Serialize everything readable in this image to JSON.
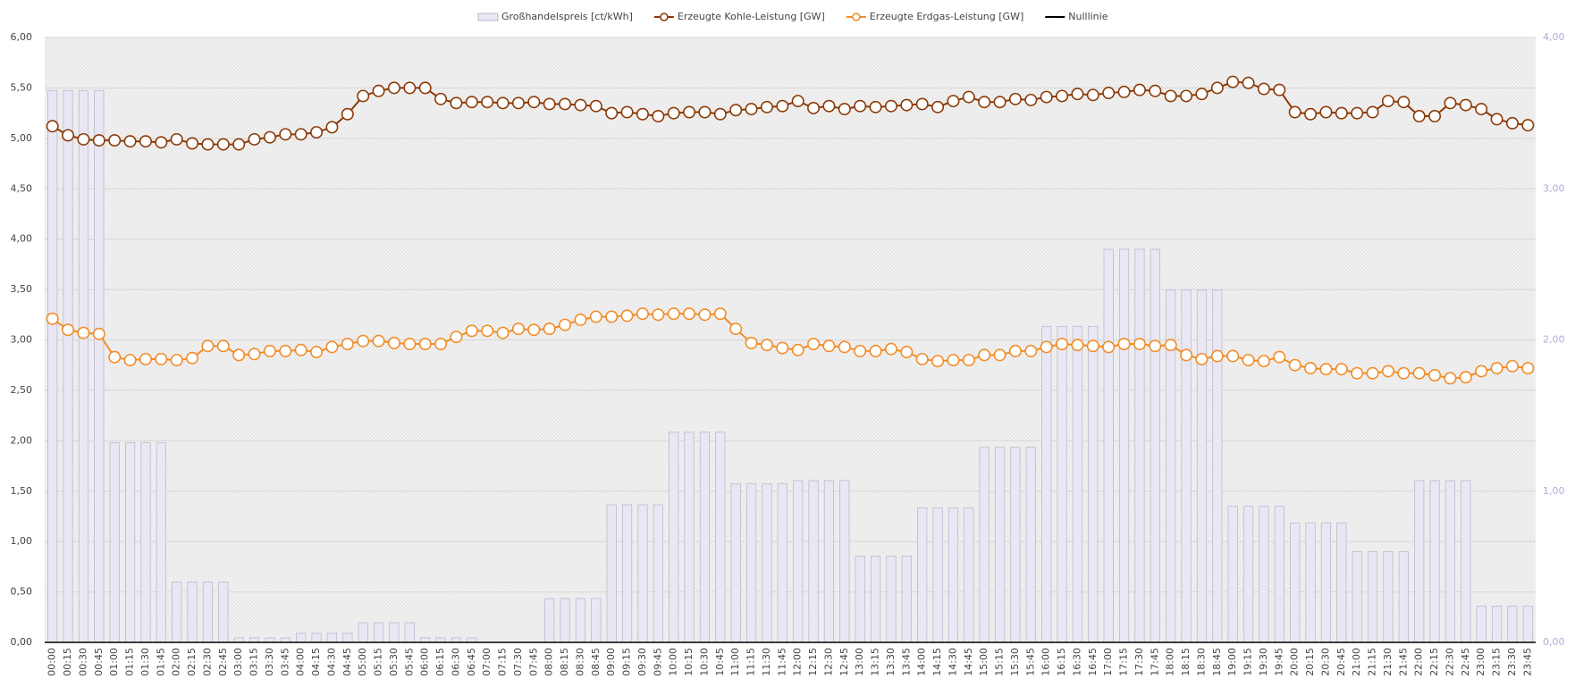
{
  "chart_data": {
    "type": "combo",
    "categories": [
      "00:00",
      "00:15",
      "00:30",
      "00:45",
      "01:00",
      "01:15",
      "01:30",
      "01:45",
      "02:00",
      "02:15",
      "02:30",
      "02:45",
      "03:00",
      "03:15",
      "03:30",
      "03:45",
      "04:00",
      "04:15",
      "04:30",
      "04:45",
      "05:00",
      "05:15",
      "05:30",
      "05:45",
      "06:00",
      "06:15",
      "06:30",
      "06:45",
      "07:00",
      "07:15",
      "07:30",
      "07:45",
      "08:00",
      "08:15",
      "08:30",
      "08:45",
      "09:00",
      "09:15",
      "09:30",
      "09:45",
      "10:00",
      "10:15",
      "10:30",
      "10:45",
      "11:00",
      "11:15",
      "11:30",
      "11:45",
      "12:00",
      "12:15",
      "12:30",
      "12:45",
      "13:00",
      "13:15",
      "13:30",
      "13:45",
      "14:00",
      "14:15",
      "14:30",
      "14:45",
      "15:00",
      "15:15",
      "15:30",
      "15:45",
      "16:00",
      "16:15",
      "16:30",
      "16:45",
      "17:00",
      "17:15",
      "17:30",
      "17:45",
      "18:00",
      "18:15",
      "18:30",
      "18:45",
      "19:00",
      "19:15",
      "19:30",
      "19:45",
      "20:00",
      "20:15",
      "20:30",
      "20:45",
      "21:00",
      "21:15",
      "21:30",
      "21:45",
      "22:00",
      "22:15",
      "22:30",
      "22:45",
      "23:00",
      "23:15",
      "23:30",
      "23:45"
    ],
    "series": [
      {
        "name": "Großhandelspreis [ct/kWh]",
        "type": "bar",
        "axis": "y2",
        "color": "#e9e7f3",
        "values": [
          3.65,
          3.65,
          3.65,
          3.65,
          1.32,
          1.32,
          1.32,
          1.32,
          0.4,
          0.4,
          0.4,
          0.4,
          0.03,
          0.03,
          0.03,
          0.03,
          0.06,
          0.06,
          0.06,
          0.06,
          0.13,
          0.13,
          0.13,
          0.13,
          0.03,
          0.03,
          0.03,
          0.03,
          0,
          0,
          0,
          0,
          0.29,
          0.29,
          0.29,
          0.29,
          0.91,
          0.91,
          0.91,
          0.91,
          1.39,
          1.39,
          1.39,
          1.39,
          1.05,
          1.05,
          1.05,
          1.05,
          1.07,
          1.07,
          1.07,
          1.07,
          0.57,
          0.57,
          0.57,
          0.57,
          0.89,
          0.89,
          0.89,
          0.89,
          1.29,
          1.29,
          1.29,
          1.29,
          2.09,
          2.09,
          2.09,
          2.09,
          2.6,
          2.6,
          2.6,
          2.6,
          2.33,
          2.33,
          2.33,
          2.33,
          0.9,
          0.9,
          0.9,
          0.9,
          0.79,
          0.79,
          0.79,
          0.79,
          0.6,
          0.6,
          0.6,
          0.6,
          1.07,
          1.07,
          1.07,
          1.07,
          0.24,
          0.24,
          0.24,
          0.24
        ]
      },
      {
        "name": "Erzeugte Kohle-Leistung [GW]",
        "type": "line",
        "color": "#8b3a06",
        "values": [
          5.12,
          5.03,
          4.99,
          4.98,
          4.98,
          4.97,
          4.97,
          4.96,
          4.99,
          4.95,
          4.94,
          4.94,
          4.94,
          4.99,
          5.01,
          5.04,
          5.04,
          5.06,
          5.11,
          5.24,
          5.42,
          5.47,
          5.5,
          5.5,
          5.5,
          5.39,
          5.35,
          5.36,
          5.36,
          5.35,
          5.35,
          5.36,
          5.34,
          5.34,
          5.33,
          5.32,
          5.25,
          5.26,
          5.24,
          5.22,
          5.25,
          5.26,
          5.26,
          5.24,
          5.28,
          5.29,
          5.31,
          5.32,
          5.37,
          5.3,
          5.32,
          5.29,
          5.32,
          5.31,
          5.32,
          5.33,
          5.34,
          5.31,
          5.37,
          5.41,
          5.36,
          5.36,
          5.39,
          5.38,
          5.41,
          5.42,
          5.44,
          5.43,
          5.45,
          5.46,
          5.48,
          5.47,
          5.42,
          5.42,
          5.44,
          5.5,
          5.56,
          5.55,
          5.49,
          5.48,
          5.26,
          5.24,
          5.26,
          5.25,
          5.25,
          5.26,
          5.37,
          5.36,
          5.22,
          5.22,
          5.35,
          5.33,
          5.29,
          5.19,
          5.15,
          5.13
        ]
      },
      {
        "name": "Erzeugte Erdgas-Leistung [GW]",
        "type": "line",
        "color": "#f28c28",
        "values": [
          3.21,
          3.1,
          3.07,
          3.06,
          2.83,
          2.8,
          2.81,
          2.81,
          2.8,
          2.82,
          2.94,
          2.94,
          2.85,
          2.86,
          2.89,
          2.89,
          2.9,
          2.88,
          2.93,
          2.96,
          2.99,
          2.99,
          2.97,
          2.96,
          2.96,
          2.96,
          3.03,
          3.09,
          3.09,
          3.07,
          3.11,
          3.1,
          3.11,
          3.15,
          3.2,
          3.23,
          3.23,
          3.24,
          3.26,
          3.25,
          3.26,
          3.26,
          3.25,
          3.26,
          3.11,
          2.97,
          2.95,
          2.92,
          2.9,
          2.96,
          2.94,
          2.93,
          2.89,
          2.89,
          2.91,
          2.88,
          2.81,
          2.79,
          2.8,
          2.8,
          2.85,
          2.85,
          2.89,
          2.89,
          2.93,
          2.96,
          2.95,
          2.94,
          2.93,
          2.96,
          2.96,
          2.94,
          2.95,
          2.85,
          2.81,
          2.84,
          2.84,
          2.8,
          2.79,
          2.83,
          2.75,
          2.72,
          2.71,
          2.71,
          2.67,
          2.67,
          2.69,
          2.67,
          2.67,
          2.65,
          2.62,
          2.63,
          2.69,
          2.72,
          2.74,
          2.72
        ]
      },
      {
        "name": "Nulllinie",
        "type": "rule",
        "color": "#000000",
        "values": [
          0,
          0,
          0,
          0,
          0,
          0,
          0,
          0,
          0,
          0,
          0,
          0,
          0,
          0,
          0,
          0,
          0,
          0,
          0,
          0,
          0,
          0,
          0,
          0,
          0,
          0,
          0,
          0,
          0,
          0,
          0,
          0,
          0,
          0,
          0,
          0,
          0,
          0,
          0,
          0,
          0,
          0,
          0,
          0,
          0,
          0,
          0,
          0,
          0,
          0,
          0,
          0,
          0,
          0,
          0,
          0,
          0,
          0,
          0,
          0,
          0,
          0,
          0,
          0,
          0,
          0,
          0,
          0,
          0,
          0,
          0,
          0,
          0,
          0,
          0,
          0,
          0,
          0,
          0,
          0,
          0,
          0,
          0,
          0,
          0,
          0,
          0,
          0,
          0,
          0,
          0,
          0,
          0,
          0,
          0,
          0
        ]
      }
    ],
    "ylim": [
      0,
      6
    ],
    "yticks": [
      {
        "value": 0,
        "label": "0,00"
      },
      {
        "value": 0.5,
        "label": "0,50"
      },
      {
        "value": 1,
        "label": "1,00"
      },
      {
        "value": 1.5,
        "label": "1,50"
      },
      {
        "value": 2,
        "label": "2,00"
      },
      {
        "value": 2.5,
        "label": "2,50"
      },
      {
        "value": 3,
        "label": "3,00"
      },
      {
        "value": 3.5,
        "label": "3,50"
      },
      {
        "value": 4,
        "label": "4,00"
      },
      {
        "value": 4.5,
        "label": "4,50"
      },
      {
        "value": 5,
        "label": "5,00"
      },
      {
        "value": 5.5,
        "label": "5,50"
      },
      {
        "value": 6,
        "label": "6,00"
      }
    ],
    "y2lim": [
      0,
      4
    ],
    "y2ticks": [
      {
        "value": 0,
        "label": "0,00"
      },
      {
        "value": 1,
        "label": "1,00"
      },
      {
        "value": 2,
        "label": "2,00"
      },
      {
        "value": 3,
        "label": "3,00"
      },
      {
        "value": 4,
        "label": "4,00"
      }
    ],
    "y2_color": "#b4a9d8",
    "grid": true,
    "legend": "top"
  }
}
